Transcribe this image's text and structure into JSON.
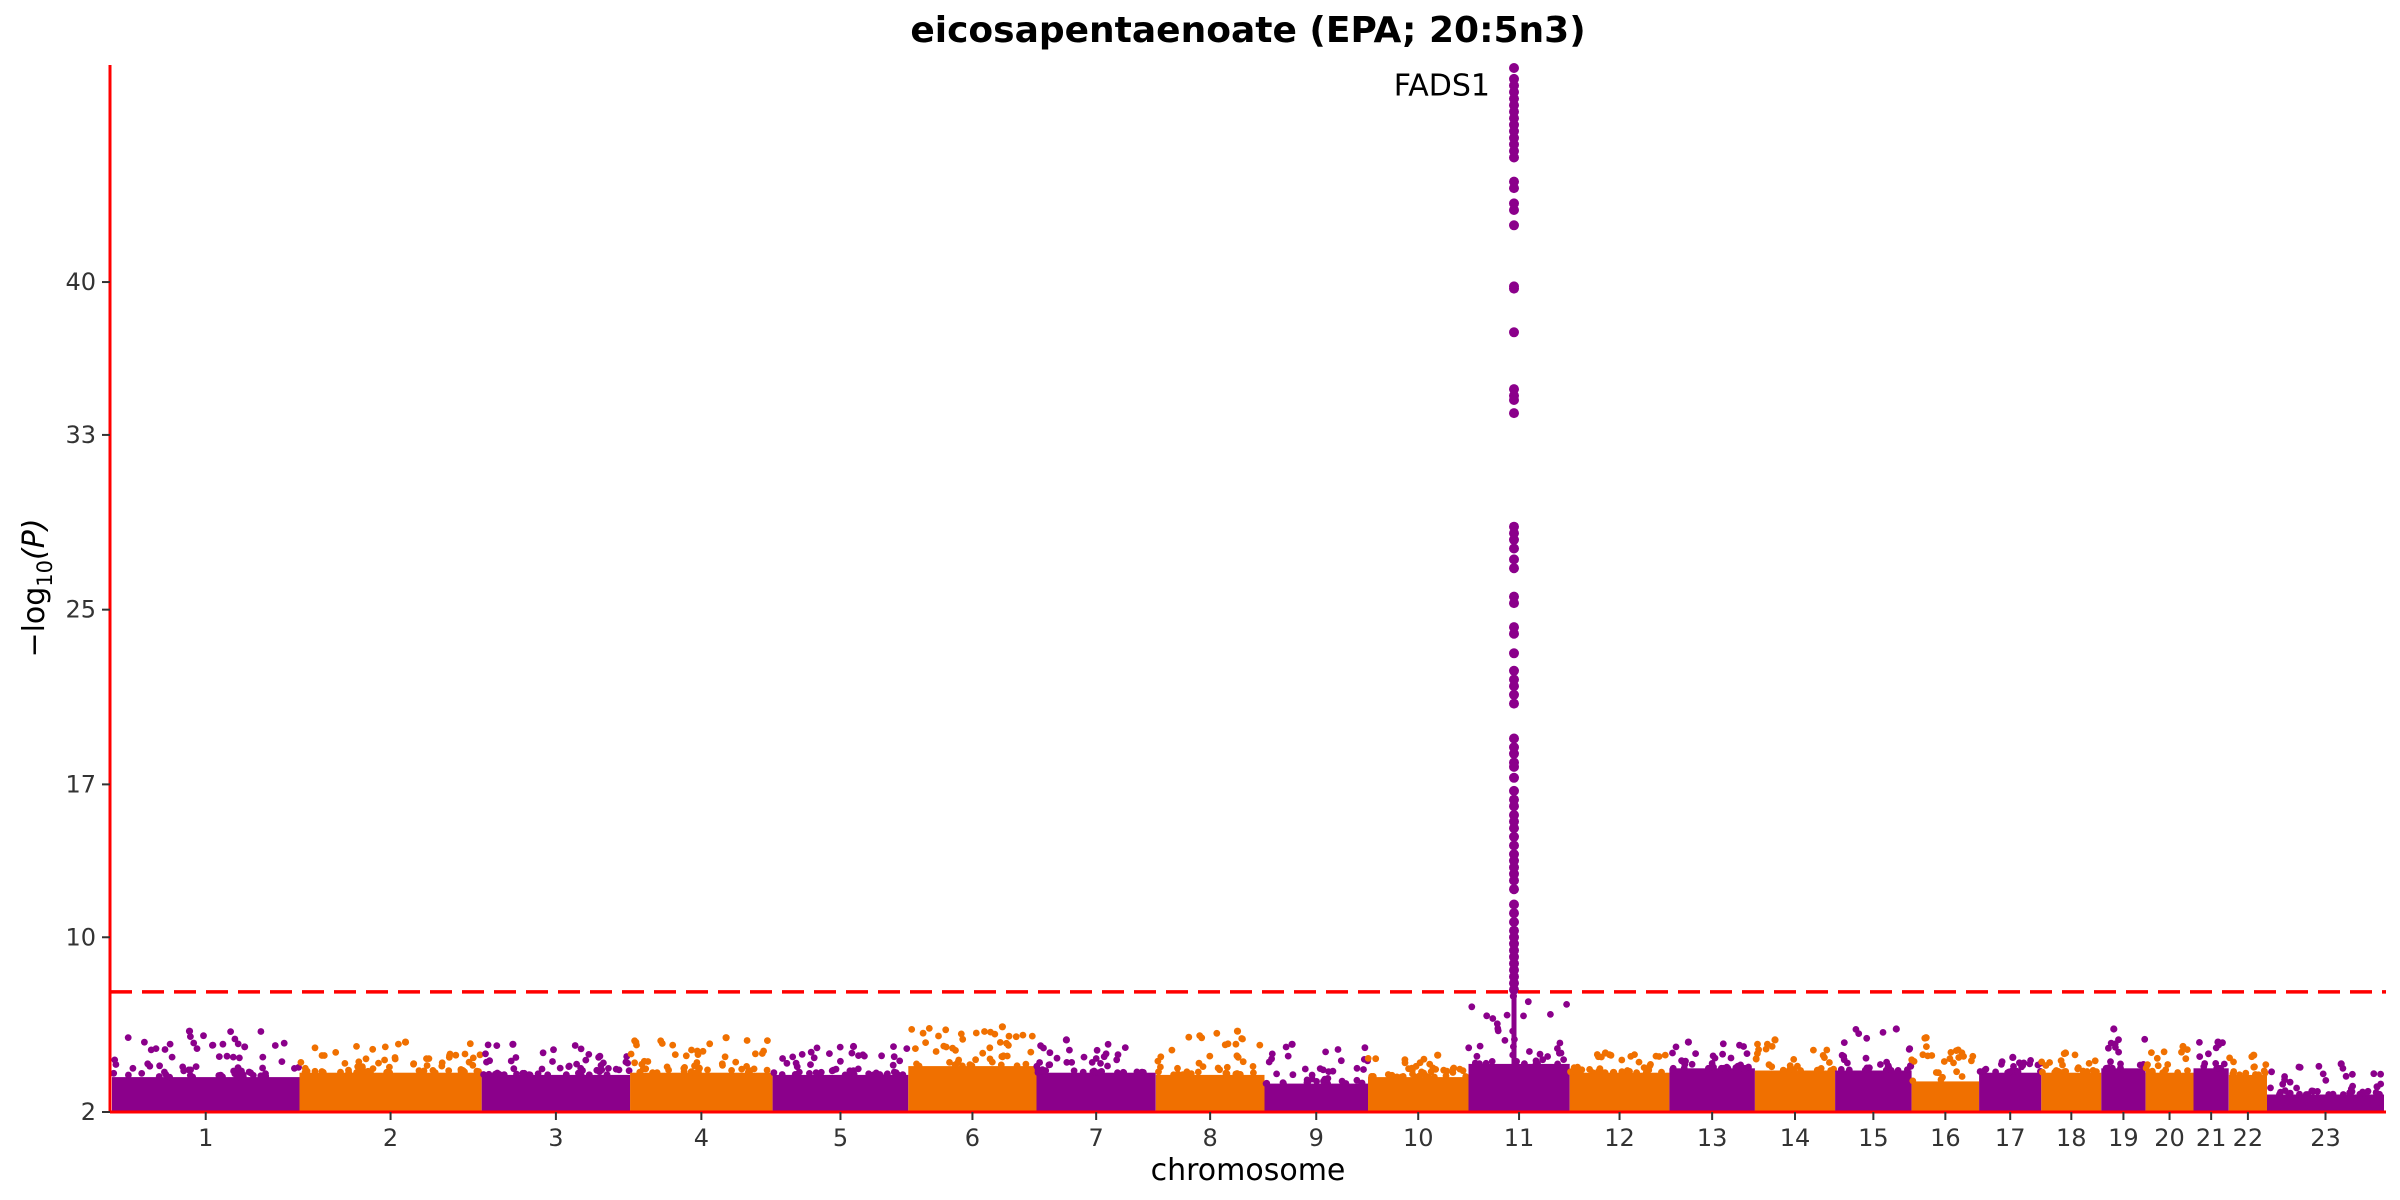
{
  "chart_data": {
    "type": "scatter",
    "title": "eicosapentaenoate (EPA; 20:5n3)",
    "xlabel": "chromosome",
    "ylabel": "−log",
    "ylabel_sub": "10",
    "ylabel_var": "(P)",
    "y_ticks": [
      2,
      10,
      17,
      25,
      33,
      40
    ],
    "ylim": [
      2,
      49.8
    ],
    "x_categories": [
      "1",
      "2",
      "3",
      "4",
      "5",
      "6",
      "7",
      "8",
      "9",
      "10",
      "11",
      "12",
      "13",
      "14",
      "15",
      "16",
      "17",
      "18",
      "19",
      "20",
      "21",
      "22",
      "23"
    ],
    "chromosome_widths": [
      250,
      243,
      198,
      190,
      181,
      171,
      159,
      145,
      138,
      134,
      135,
      133,
      114,
      107,
      102,
      90,
      83,
      80,
      59,
      64,
      47,
      51,
      156
    ],
    "colors": [
      "#8b008b",
      "#f07000"
    ],
    "axis_color": "#ff0000",
    "significance_line": {
      "y": 7.5,
      "color": "#ff0000",
      "style": "dashed"
    },
    "peak_heights": [
      5.7,
      5.2,
      5.1,
      5.4,
      5.0,
      5.9,
      5.3,
      5.7,
      5.1,
      4.6,
      7.3,
      4.7,
      5.2,
      5.3,
      5.8,
      5.4,
      4.5,
      4.7,
      5.8,
      5.0,
      5.2,
      4.6,
      4.2
    ],
    "baseline_tops": [
      3.6,
      3.8,
      3.7,
      3.8,
      3.7,
      4.1,
      3.8,
      3.7,
      3.3,
      3.6,
      4.2,
      3.8,
      4.0,
      3.9,
      3.9,
      3.4,
      3.8,
      3.8,
      4.0,
      3.8,
      4.0,
      3.7,
      2.8
    ],
    "significant_hits": {
      "chromosome": "11",
      "y": [
        49.8,
        49.3,
        49.0,
        48.7,
        48.4,
        48.1,
        47.8,
        47.5,
        47.2,
        46.9,
        46.6,
        46.3,
        46.0,
        45.7,
        44.6,
        44.3,
        43.6,
        43.3,
        42.6,
        39.8,
        39.7,
        37.7,
        35.1,
        34.8,
        34.6,
        34.0,
        28.8,
        28.5,
        28.2,
        27.8,
        27.3,
        26.9,
        25.6,
        25.3,
        24.2,
        23.9,
        23.0,
        22.2,
        21.8,
        21.5,
        21.1,
        20.7,
        19.1,
        18.7,
        18.4,
        18.0,
        17.8,
        17.3,
        16.7,
        16.3,
        16.0,
        15.6,
        15.3,
        15.0,
        14.6,
        14.2,
        13.8,
        13.5,
        13.2,
        12.9,
        12.6,
        12.2,
        11.5,
        11.1,
        10.7,
        10.3,
        10.0,
        9.7,
        9.4,
        9.1,
        8.8,
        8.5,
        8.2,
        7.9,
        7.6
      ]
    },
    "annotations": [
      {
        "text": "FADS1",
        "chromosome": "11",
        "y": 49.0
      }
    ]
  }
}
